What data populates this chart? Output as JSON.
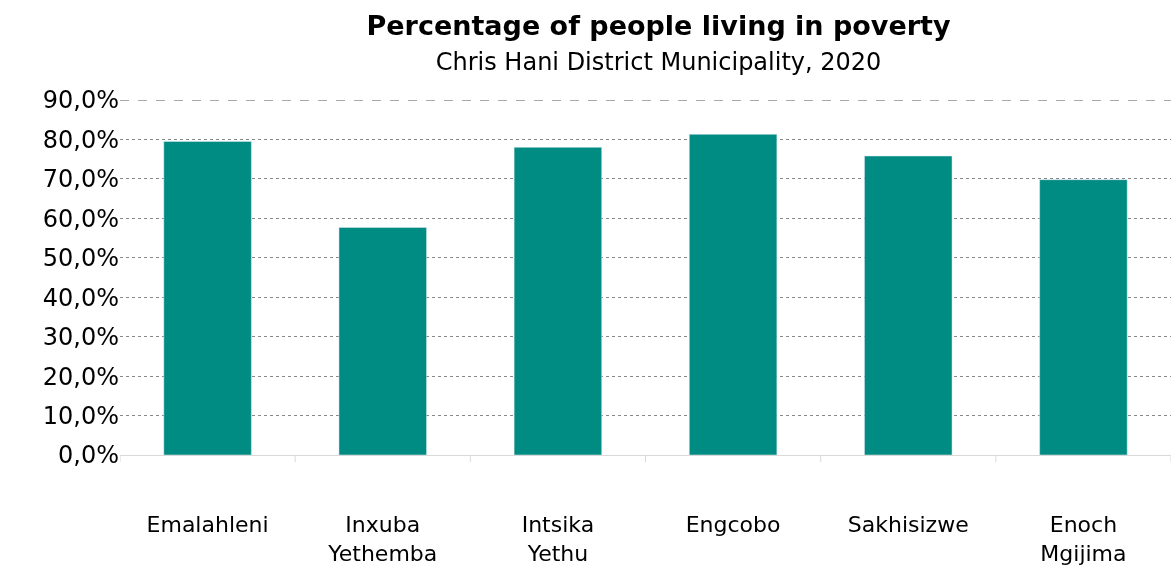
{
  "chart_data": {
    "type": "bar",
    "title": "Percentage of people living in poverty",
    "subtitle": "Chris Hani District Municipality, 2020",
    "categories": [
      "Emalahleni",
      "Inxuba Yethemba",
      "Intsika Yethu",
      "Engcobo",
      "Sakhisizwe",
      "Enoch Mgijima"
    ],
    "series": [
      {
        "color": "#008c83",
        "values": [
          79.5,
          57.7,
          78.0,
          81.3,
          75.8,
          69.8
        ]
      }
    ],
    "ylim": [
      0,
      90
    ],
    "yticks": [
      {
        "value": 0,
        "label": "0,0%"
      },
      {
        "value": 10,
        "label": "10,0%"
      },
      {
        "value": 20,
        "label": "20,0%"
      },
      {
        "value": 30,
        "label": "30,0%"
      },
      {
        "value": 40,
        "label": "40,0%"
      },
      {
        "value": 50,
        "label": "50,0%"
      },
      {
        "value": 60,
        "label": "60,0%"
      },
      {
        "value": 70,
        "label": "70,0%"
      },
      {
        "value": 80,
        "label": "80,0%"
      },
      {
        "value": 90,
        "label": "90,0%"
      }
    ],
    "grid": "y",
    "legend": false
  }
}
